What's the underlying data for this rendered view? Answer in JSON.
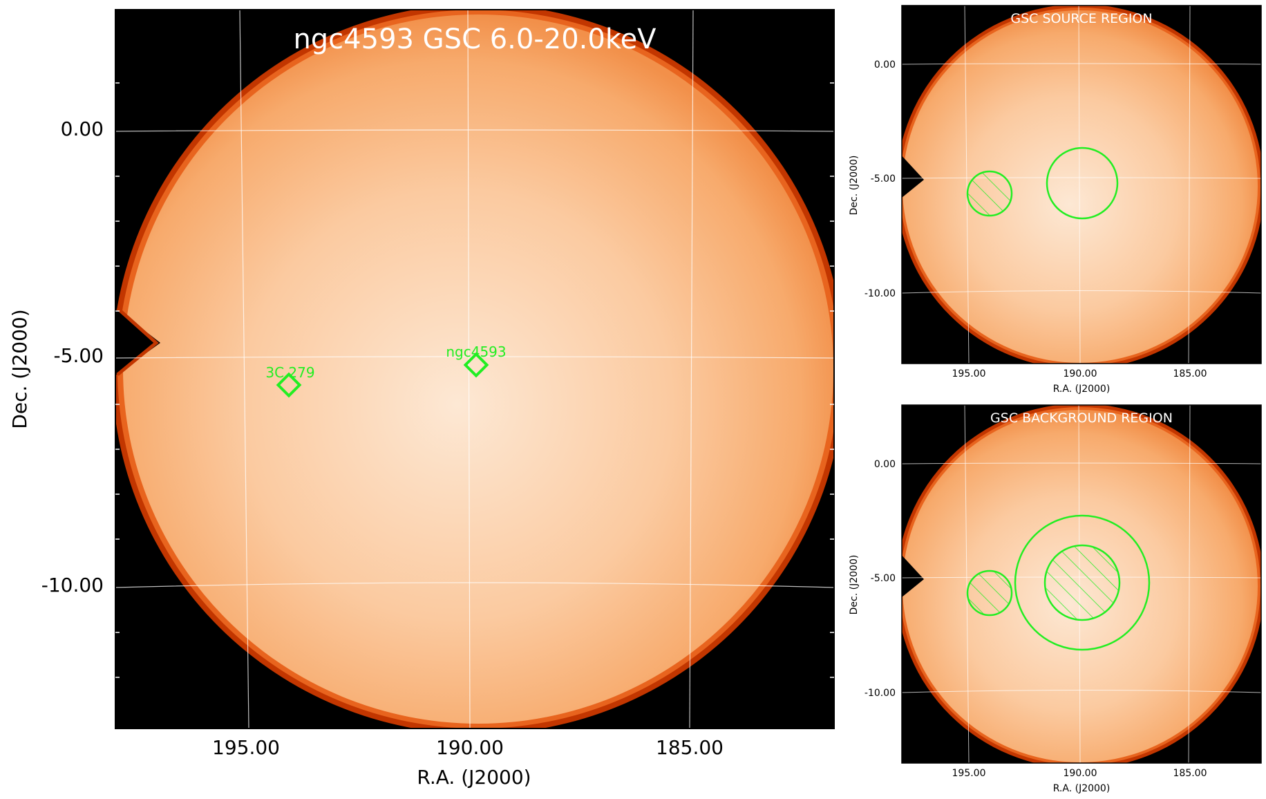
{
  "main_panel": {
    "title": "ngc4593 GSC 6.0-20.0keV",
    "xlabel": "R.A. (J2000)",
    "ylabel": "Dec. (J2000)",
    "x_ticks": [
      "195.00",
      "190.00",
      "185.00"
    ],
    "y_ticks": [
      "0.00",
      "-5.00",
      "-10.00"
    ],
    "sources": [
      {
        "label": "3C 279",
        "ra": 194.0,
        "dec": -5.8
      },
      {
        "label": "ngc4593",
        "ra": 189.8,
        "dec": -5.3
      }
    ]
  },
  "source_panel": {
    "title": "GSC SOURCE REGION",
    "xlabel": "R.A. (J2000)",
    "ylabel": "Dec. (J2000)",
    "x_ticks": [
      "195.00",
      "190.00",
      "185.00"
    ],
    "y_ticks": [
      "0.00",
      "-5.00",
      "-10.00"
    ]
  },
  "background_panel": {
    "title": "GSC BACKGROUND REGION",
    "xlabel": "R.A. (J2000)",
    "ylabel": "Dec. (J2000)",
    "x_ticks": [
      "195.00",
      "190.00",
      "185.00"
    ],
    "y_ticks": [
      "0.00",
      "-5.00",
      "-10.00"
    ]
  },
  "colors": {
    "region": "#22ee22",
    "map_center": "#fde7d2",
    "map_edge": "#f59a55",
    "rim": "#b52a00",
    "background": "#000000",
    "grid": "#ffffff"
  }
}
